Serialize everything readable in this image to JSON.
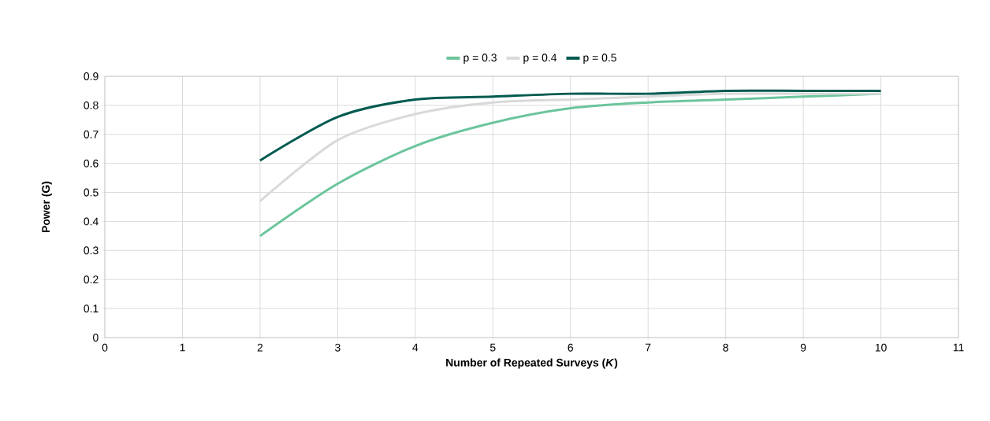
{
  "chart_data": {
    "type": "line",
    "xlabel": "Number of Repeated Surveys (*K*)",
    "ylabel": "Power (G)",
    "x": [
      2,
      3,
      4,
      5,
      6,
      7,
      8,
      9,
      10
    ],
    "series": [
      {
        "name": "p = 0.3",
        "color": "#6cc59c",
        "values": [
          0.35,
          0.53,
          0.66,
          0.74,
          0.79,
          0.81,
          0.82,
          0.83,
          0.84
        ]
      },
      {
        "name": "p = 0.4",
        "color": "#d9d9d9",
        "values": [
          0.47,
          0.68,
          0.77,
          0.81,
          0.82,
          0.83,
          0.84,
          0.84,
          0.84
        ]
      },
      {
        "name": "p = 0.5",
        "color": "#005a50",
        "values": [
          0.61,
          0.76,
          0.82,
          0.83,
          0.84,
          0.84,
          0.85,
          0.85,
          0.85
        ]
      }
    ],
    "xlim": [
      0,
      11
    ],
    "xticks": [
      0,
      1,
      2,
      3,
      4,
      5,
      6,
      7,
      8,
      9,
      10,
      11
    ],
    "ylim": [
      0,
      0.9
    ],
    "yticks": [
      0,
      0.1,
      0.2,
      0.3,
      0.4,
      0.5,
      0.6,
      0.7,
      0.8,
      0.9
    ],
    "grid": true,
    "legend": "top"
  }
}
